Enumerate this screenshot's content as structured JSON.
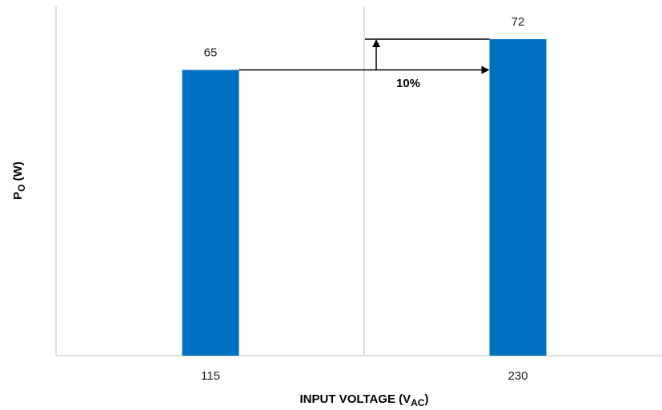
{
  "chart_data": {
    "type": "bar",
    "categories": [
      "115",
      "230"
    ],
    "values": [
      65,
      72
    ],
    "data_labels": [
      "65",
      "72"
    ],
    "xlabel": {
      "main": "INPUT VOLTAGE (V",
      "sub": "AC",
      "close": ")"
    },
    "ylabel": {
      "main": "P",
      "sub": "O",
      "rest": " (W)"
    },
    "annotation": "10%",
    "colors": {
      "bar": "#0070c0",
      "axis": "#d4d4d4",
      "arrow": "#000000"
    },
    "grid": false,
    "y_tick_labels_shown": false
  }
}
